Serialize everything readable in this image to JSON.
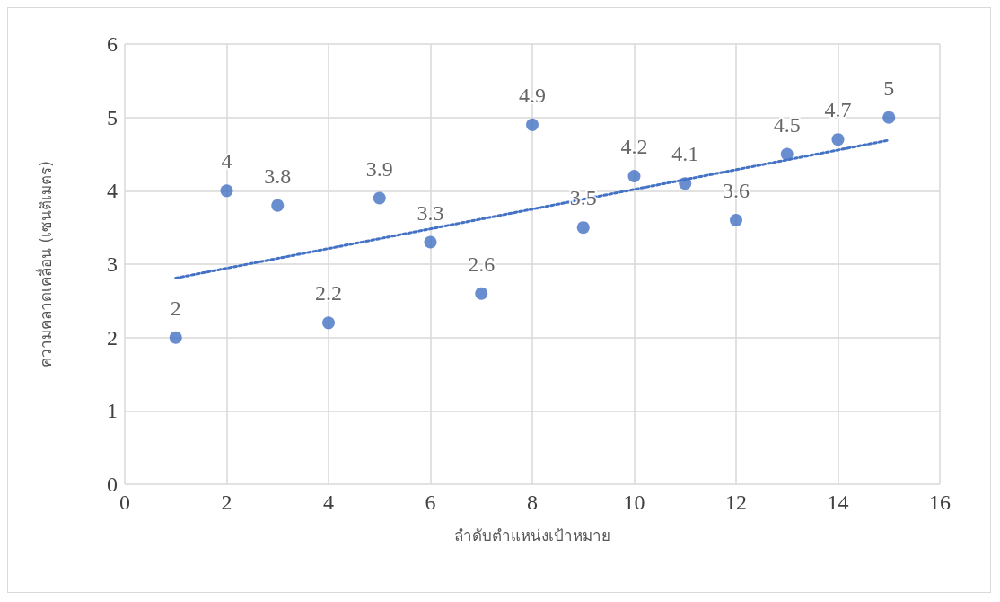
{
  "chart_data": {
    "type": "scatter",
    "xlabel": "ลำดับตำแหน่งเป้าหมาย",
    "ylabel": "ความคลาดเคลื่อน (เซนติเมตร)",
    "xlim": [
      0,
      16
    ],
    "xticks": [
      0,
      2,
      4,
      6,
      8,
      10,
      12,
      14,
      16
    ],
    "ylim": [
      0,
      6
    ],
    "yticks": [
      0,
      1,
      2,
      3,
      4,
      5,
      6
    ],
    "grid": true,
    "marker": "circle",
    "series": [
      {
        "color": "#4472c4",
        "x": [
          1,
          2,
          3,
          4,
          5,
          6,
          7,
          8,
          9,
          10,
          11,
          12,
          13,
          14,
          15
        ],
        "values": [
          2,
          4,
          3.8,
          2.2,
          3.9,
          3.3,
          2.6,
          4.9,
          3.5,
          4.2,
          4.1,
          3.6,
          4.5,
          4.7,
          5
        ],
        "value_labels": [
          "2",
          "4",
          "3.8",
          "2.2",
          "3.9",
          "3.3",
          "2.6",
          "4.9",
          "3.5",
          "4.2",
          "4.1",
          "3.6",
          "4.5",
          "4.7",
          "5"
        ]
      },
      {
        "type": "line",
        "color": "#4472c4",
        "line_style": "dotted",
        "marker": "none",
        "x": [
          1,
          15
        ],
        "values": [
          2.81,
          4.69
        ]
      }
    ]
  }
}
